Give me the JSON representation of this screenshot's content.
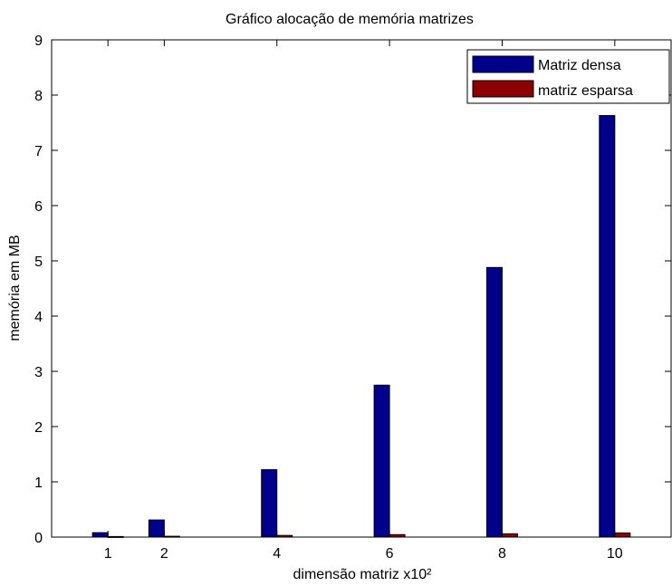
{
  "chart_data": {
    "type": "bar",
    "title": "Gráfico alocação de memória matrizes",
    "xlabel": "dimensão matriz x10²",
    "ylabel": "memória em MB",
    "xlim": [
      0,
      11
    ],
    "ylim": [
      0,
      9
    ],
    "x_ticks": [
      1,
      2,
      4,
      6,
      8,
      10
    ],
    "y_ticks": [
      0,
      1,
      2,
      3,
      4,
      5,
      6,
      7,
      8,
      9
    ],
    "x": [
      1,
      2,
      4,
      6,
      8,
      10
    ],
    "series": [
      {
        "name": "Matriz densa",
        "color": "#00008b",
        "values": [
          0.08,
          0.31,
          1.22,
          2.75,
          4.88,
          7.63
        ]
      },
      {
        "name": "matriz esparsa",
        "color": "#8b0000",
        "values": [
          0.01,
          0.015,
          0.03,
          0.045,
          0.06,
          0.075
        ]
      }
    ],
    "grid": false,
    "legend_position": "top-right"
  }
}
